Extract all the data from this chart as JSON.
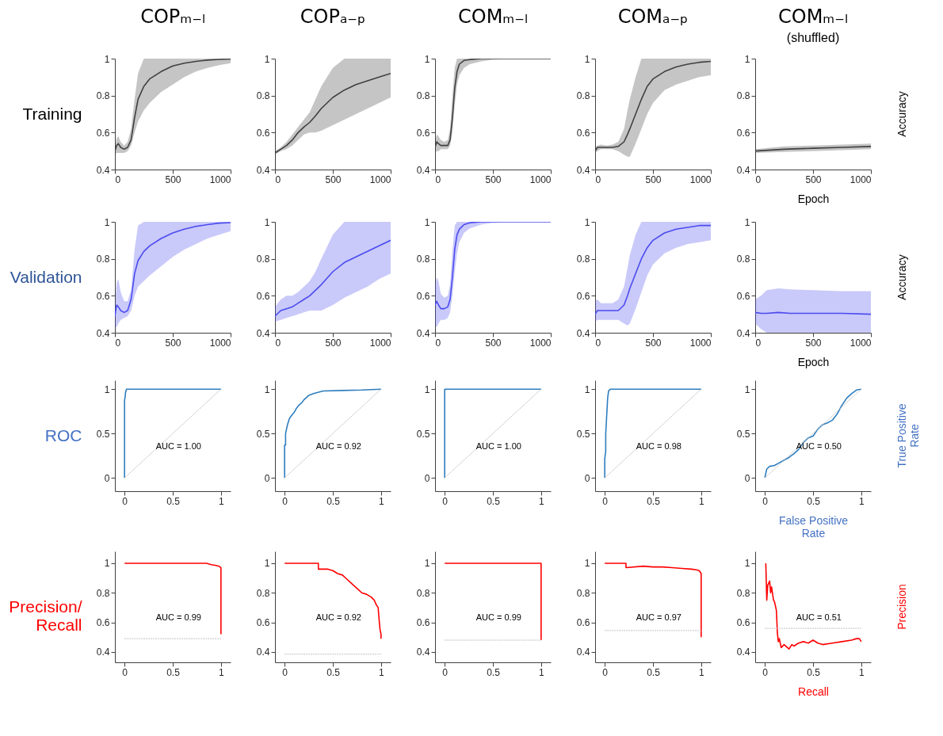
{
  "chart_data": [
    {
      "type": "line",
      "title": "COPₘ₋ₗ",
      "ylabel": "Training",
      "xlim": [
        0,
        1000
      ],
      "xticks": [
        0,
        500,
        1000
      ],
      "ylim": [
        0.4,
        1
      ],
      "yticks": [
        0.4,
        0.6,
        0.8,
        1
      ],
      "x": [
        0,
        15,
        30,
        50,
        80,
        110,
        140,
        170,
        200,
        250,
        300,
        400,
        500,
        600,
        700,
        800,
        900,
        1000
      ],
      "series": [
        {
          "color": "#404040",
          "values": [
            0.5,
            0.53,
            0.54,
            0.52,
            0.51,
            0.52,
            0.56,
            0.68,
            0.78,
            0.85,
            0.89,
            0.93,
            0.96,
            0.975,
            0.985,
            0.992,
            0.996,
            0.998
          ],
          "lower": [
            0.48,
            0.49,
            0.49,
            0.49,
            0.49,
            0.5,
            0.53,
            0.6,
            0.66,
            0.72,
            0.76,
            0.82,
            0.86,
            0.9,
            0.93,
            0.95,
            0.965,
            0.975
          ],
          "upper": [
            0.52,
            0.57,
            0.58,
            0.55,
            0.53,
            0.55,
            0.62,
            0.78,
            0.92,
            1,
            1,
            1,
            1,
            1,
            1,
            1,
            1,
            1
          ]
        }
      ]
    },
    {
      "type": "line",
      "title": "COPₐ₋ₚ",
      "xlim": [
        0,
        1000
      ],
      "xticks": [
        0,
        500,
        1000
      ],
      "ylim": [
        0.4,
        1
      ],
      "yticks": [
        0.4,
        0.6,
        0.8,
        1
      ],
      "x": [
        0,
        50,
        100,
        150,
        200,
        250,
        300,
        350,
        400,
        500,
        600,
        700,
        800,
        900,
        1000
      ],
      "series": [
        {
          "color": "#404040",
          "values": [
            0.49,
            0.51,
            0.53,
            0.56,
            0.6,
            0.63,
            0.655,
            0.69,
            0.73,
            0.79,
            0.83,
            0.86,
            0.88,
            0.9,
            0.92
          ],
          "lower": [
            0.48,
            0.5,
            0.51,
            0.53,
            0.56,
            0.59,
            0.6,
            0.6,
            0.61,
            0.64,
            0.67,
            0.7,
            0.73,
            0.76,
            0.79
          ],
          "upper": [
            0.5,
            0.52,
            0.55,
            0.59,
            0.63,
            0.67,
            0.71,
            0.78,
            0.85,
            0.95,
            1,
            1,
            1,
            1,
            1
          ]
        }
      ]
    },
    {
      "type": "line",
      "title": "COMₘ₋ₗ",
      "xlim": [
        0,
        1000
      ],
      "xticks": [
        0,
        500,
        1000
      ],
      "ylim": [
        0.4,
        1
      ],
      "yticks": [
        0.4,
        0.6,
        0.8,
        1
      ],
      "x": [
        0,
        15,
        30,
        50,
        80,
        110,
        130,
        150,
        170,
        190,
        210,
        250,
        300,
        400,
        500,
        600,
        700,
        1000
      ],
      "series": [
        {
          "color": "#404040",
          "values": [
            0.52,
            0.55,
            0.54,
            0.53,
            0.53,
            0.53,
            0.56,
            0.68,
            0.84,
            0.93,
            0.97,
            0.99,
            0.995,
            1,
            1,
            1,
            1,
            1
          ],
          "lower": [
            0.49,
            0.5,
            0.5,
            0.51,
            0.51,
            0.51,
            0.53,
            0.6,
            0.75,
            0.86,
            0.91,
            0.95,
            0.97,
            0.985,
            0.995,
            1,
            1,
            1
          ],
          "upper": [
            0.55,
            0.59,
            0.58,
            0.56,
            0.55,
            0.56,
            0.62,
            0.8,
            0.95,
            1,
            1,
            1,
            1,
            1,
            1,
            1,
            1,
            1
          ]
        }
      ]
    },
    {
      "type": "line",
      "title": "COMₐ₋ₚ",
      "xlim": [
        0,
        1000
      ],
      "xticks": [
        0,
        500,
        1000
      ],
      "ylim": [
        0.4,
        1
      ],
      "yticks": [
        0.4,
        0.6,
        0.8,
        1
      ],
      "x": [
        0,
        20,
        50,
        100,
        150,
        200,
        250,
        280,
        300,
        350,
        400,
        450,
        500,
        600,
        700,
        800,
        900,
        1000
      ],
      "series": [
        {
          "color": "#404040",
          "values": [
            0.5,
            0.52,
            0.52,
            0.52,
            0.52,
            0.525,
            0.55,
            0.59,
            0.62,
            0.7,
            0.78,
            0.85,
            0.89,
            0.93,
            0.955,
            0.97,
            0.98,
            0.985
          ],
          "lower": [
            0.49,
            0.5,
            0.51,
            0.51,
            0.51,
            0.5,
            0.48,
            0.47,
            0.47,
            0.54,
            0.62,
            0.7,
            0.76,
            0.83,
            0.86,
            0.88,
            0.9,
            0.91
          ],
          "upper": [
            0.52,
            0.53,
            0.535,
            0.53,
            0.535,
            0.55,
            0.62,
            0.72,
            0.78,
            0.9,
            1,
            1,
            1,
            1,
            1,
            1,
            1,
            1
          ]
        }
      ]
    },
    {
      "type": "line",
      "title": "COMₘ₋ₗ",
      "subtitle": "(shuffled)",
      "ylabel": "Accuracy",
      "xlabel": "Epoch",
      "xlim": [
        0,
        1000
      ],
      "xticks": [
        0,
        500,
        1000
      ],
      "ylim": [
        0.4,
        1
      ],
      "yticks": [
        0.4,
        0.6,
        0.8,
        1
      ],
      "x": [
        0,
        250,
        500,
        750,
        1000
      ],
      "series": [
        {
          "color": "#404040",
          "values": [
            0.5,
            0.51,
            0.515,
            0.52,
            0.525
          ],
          "lower": [
            0.49,
            0.495,
            0.5,
            0.505,
            0.51
          ],
          "upper": [
            0.51,
            0.525,
            0.53,
            0.535,
            0.54
          ]
        }
      ]
    },
    {
      "type": "line",
      "ylabel": "Validation",
      "xlim": [
        0,
        1000
      ],
      "xticks": [
        0,
        500,
        1000
      ],
      "ylim": [
        0.4,
        1
      ],
      "yticks": [
        0.4,
        0.6,
        0.8,
        1
      ],
      "x": [
        0,
        15,
        30,
        50,
        80,
        110,
        140,
        170,
        200,
        250,
        300,
        400,
        500,
        600,
        700,
        800,
        900,
        1000
      ],
      "series": [
        {
          "color": "#4b4bf0",
          "values": [
            0.49,
            0.55,
            0.54,
            0.52,
            0.51,
            0.52,
            0.58,
            0.72,
            0.79,
            0.84,
            0.87,
            0.91,
            0.94,
            0.96,
            0.975,
            0.985,
            0.993,
            0.996
          ],
          "lower": [
            0.43,
            0.43,
            0.45,
            0.47,
            0.48,
            0.49,
            0.52,
            0.6,
            0.65,
            0.68,
            0.71,
            0.76,
            0.81,
            0.85,
            0.88,
            0.91,
            0.93,
            0.95
          ],
          "upper": [
            0.55,
            0.67,
            0.69,
            0.62,
            0.57,
            0.57,
            0.63,
            0.85,
            0.98,
            1,
            1,
            1,
            1,
            1,
            1,
            1,
            1,
            1
          ]
        }
      ]
    },
    {
      "type": "line",
      "xlim": [
        0,
        1000
      ],
      "xticks": [
        0,
        500,
        1000
      ],
      "ylim": [
        0.4,
        1
      ],
      "yticks": [
        0.4,
        0.6,
        0.8,
        1
      ],
      "x": [
        0,
        50,
        100,
        150,
        200,
        250,
        300,
        350,
        400,
        500,
        600,
        700,
        800,
        900,
        1000
      ],
      "series": [
        {
          "color": "#4b4bf0",
          "values": [
            0.49,
            0.52,
            0.53,
            0.54,
            0.56,
            0.58,
            0.6,
            0.63,
            0.66,
            0.73,
            0.78,
            0.81,
            0.84,
            0.87,
            0.9
          ],
          "lower": [
            0.46,
            0.47,
            0.48,
            0.49,
            0.5,
            0.51,
            0.52,
            0.52,
            0.52,
            0.55,
            0.59,
            0.62,
            0.65,
            0.69,
            0.72
          ],
          "upper": [
            0.54,
            0.58,
            0.6,
            0.6,
            0.62,
            0.65,
            0.68,
            0.73,
            0.8,
            0.93,
            1,
            1,
            1,
            1,
            1
          ]
        }
      ]
    },
    {
      "type": "line",
      "xlim": [
        0,
        1000
      ],
      "xticks": [
        0,
        500,
        1000
      ],
      "ylim": [
        0.4,
        1
      ],
      "yticks": [
        0.4,
        0.6,
        0.8,
        1
      ],
      "x": [
        0,
        15,
        30,
        50,
        80,
        110,
        130,
        150,
        170,
        190,
        210,
        250,
        300,
        400,
        500,
        600,
        700,
        1000
      ],
      "series": [
        {
          "color": "#4b4bf0",
          "values": [
            0.55,
            0.57,
            0.55,
            0.53,
            0.53,
            0.54,
            0.58,
            0.7,
            0.85,
            0.93,
            0.96,
            0.985,
            0.995,
            1,
            1,
            1,
            1,
            1
          ],
          "lower": [
            0.44,
            0.43,
            0.45,
            0.47,
            0.47,
            0.48,
            0.51,
            0.6,
            0.73,
            0.83,
            0.89,
            0.94,
            0.965,
            0.985,
            0.995,
            1,
            1,
            1
          ],
          "upper": [
            0.66,
            0.7,
            0.68,
            0.61,
            0.59,
            0.6,
            0.66,
            0.84,
            0.98,
            1,
            1,
            1,
            1,
            1,
            1,
            1,
            1,
            1
          ]
        }
      ]
    },
    {
      "type": "line",
      "xlim": [
        0,
        1000
      ],
      "xticks": [
        0,
        500,
        1000
      ],
      "ylim": [
        0.4,
        1
      ],
      "yticks": [
        0.4,
        0.6,
        0.8,
        1
      ],
      "x": [
        0,
        20,
        50,
        100,
        150,
        200,
        250,
        280,
        300,
        350,
        400,
        450,
        500,
        600,
        700,
        800,
        900,
        1000
      ],
      "series": [
        {
          "color": "#4b4bf0",
          "values": [
            0.5,
            0.52,
            0.52,
            0.52,
            0.52,
            0.52,
            0.55,
            0.6,
            0.64,
            0.72,
            0.8,
            0.86,
            0.9,
            0.94,
            0.96,
            0.97,
            0.98,
            0.98
          ],
          "lower": [
            0.46,
            0.47,
            0.47,
            0.47,
            0.47,
            0.47,
            0.45,
            0.44,
            0.45,
            0.53,
            0.62,
            0.71,
            0.77,
            0.83,
            0.86,
            0.88,
            0.89,
            0.9
          ],
          "upper": [
            0.57,
            0.58,
            0.56,
            0.56,
            0.56,
            0.58,
            0.65,
            0.75,
            0.82,
            0.93,
            1,
            1,
            1,
            1,
            1,
            1,
            1,
            1
          ]
        }
      ]
    },
    {
      "type": "line",
      "ylabel": "Accuracy",
      "xlabel": "Epoch",
      "xlim": [
        0,
        1000
      ],
      "xticks": [
        0,
        500,
        1000
      ],
      "ylim": [
        0.4,
        1
      ],
      "yticks": [
        0.4,
        0.6,
        0.8,
        1
      ],
      "x": [
        0,
        50,
        100,
        200,
        300,
        500,
        750,
        1000
      ],
      "series": [
        {
          "color": "#4b4bf0",
          "values": [
            0.51,
            0.505,
            0.505,
            0.51,
            0.505,
            0.505,
            0.505,
            0.5
          ],
          "lower": [
            0.45,
            0.42,
            0.4,
            0.4,
            0.4,
            0.4,
            0.4,
            0.4
          ],
          "upper": [
            0.58,
            0.6,
            0.63,
            0.64,
            0.635,
            0.63,
            0.625,
            0.625
          ]
        }
      ]
    },
    {
      "type": "line",
      "ylabel": "ROC",
      "annotations": [
        "AUC = 1.00"
      ],
      "xlim": [
        -0.1,
        1.1
      ],
      "xticks": [
        0,
        0.5,
        1
      ],
      "ylim": [
        -0.15,
        1.1
      ],
      "yticks": [
        0,
        0.5,
        1
      ],
      "series": [
        {
          "color": "#c0c0c0",
          "line_style": "dotted",
          "x": [
            0,
            1
          ],
          "values": [
            0,
            1
          ]
        },
        {
          "color": "#2e7ebf",
          "x": [
            0,
            0,
            0.005,
            0.01,
            0.02,
            1
          ],
          "values": [
            0,
            0.88,
            0.9,
            0.96,
            1,
            1
          ]
        }
      ]
    },
    {
      "type": "line",
      "annotations": [
        "AUC = 0.92"
      ],
      "xlim": [
        -0.1,
        1.1
      ],
      "xticks": [
        0,
        0.5,
        1
      ],
      "ylim": [
        -0.15,
        1.1
      ],
      "yticks": [
        0,
        0.5,
        1
      ],
      "series": [
        {
          "color": "#c0c0c0",
          "line_style": "dotted",
          "x": [
            0,
            1
          ],
          "values": [
            0,
            1
          ]
        },
        {
          "color": "#2e7ebf",
          "x": [
            0,
            0,
            0.01,
            0.01,
            0.02,
            0.03,
            0.05,
            0.07,
            0.1,
            0.12,
            0.15,
            0.18,
            0.2,
            0.25,
            0.3,
            0.4,
            0.6,
            0.8,
            1
          ],
          "values": [
            0,
            0.37,
            0.37,
            0.5,
            0.55,
            0.6,
            0.67,
            0.7,
            0.74,
            0.78,
            0.82,
            0.85,
            0.88,
            0.93,
            0.95,
            0.98,
            0.985,
            0.99,
            1
          ]
        }
      ]
    },
    {
      "type": "line",
      "annotations": [
        "AUC = 1.00"
      ],
      "xlim": [
        -0.1,
        1.1
      ],
      "xticks": [
        0,
        0.5,
        1
      ],
      "ylim": [
        -0.15,
        1.1
      ],
      "yticks": [
        0,
        0.5,
        1
      ],
      "series": [
        {
          "color": "#c0c0c0",
          "line_style": "dotted",
          "x": [
            0,
            1
          ],
          "values": [
            0,
            1
          ]
        },
        {
          "color": "#2e7ebf",
          "x": [
            0,
            0,
            1
          ],
          "values": [
            0,
            1,
            1
          ]
        }
      ]
    },
    {
      "type": "line",
      "annotations": [
        "AUC = 0.98"
      ],
      "xlim": [
        -0.1,
        1.1
      ],
      "xticks": [
        0,
        0.5,
        1
      ],
      "ylim": [
        -0.15,
        1.1
      ],
      "yticks": [
        0,
        0.5,
        1
      ],
      "series": [
        {
          "color": "#c0c0c0",
          "line_style": "dotted",
          "x": [
            0,
            1
          ],
          "values": [
            0,
            1
          ]
        },
        {
          "color": "#2e7ebf",
          "x": [
            0,
            0,
            0.01,
            0.01,
            0.02,
            0.03,
            0.04,
            0.06,
            1
          ],
          "values": [
            0,
            0.22,
            0.3,
            0.5,
            0.7,
            0.9,
            0.98,
            1,
            1
          ]
        }
      ]
    },
    {
      "type": "line",
      "ylabel": "True Positive\nRate",
      "xlabel": "False Positive\nRate",
      "annotations": [
        "AUC = 0.50"
      ],
      "xlim": [
        -0.1,
        1.1
      ],
      "xticks": [
        0,
        0.5,
        1
      ],
      "ylim": [
        -0.15,
        1.1
      ],
      "yticks": [
        0,
        0.5,
        1
      ],
      "series": [
        {
          "color": "#c0c0c0",
          "line_style": "dotted",
          "x": [
            0,
            1
          ],
          "values": [
            0,
            1
          ]
        },
        {
          "color": "#2e7ebf",
          "x": [
            0,
            0.02,
            0.05,
            0.1,
            0.15,
            0.2,
            0.25,
            0.3,
            0.35,
            0.4,
            0.45,
            0.5,
            0.55,
            0.6,
            0.65,
            0.7,
            0.75,
            0.8,
            0.85,
            0.9,
            0.95,
            1
          ],
          "values": [
            0,
            0.1,
            0.13,
            0.14,
            0.17,
            0.2,
            0.23,
            0.27,
            0.32,
            0.4,
            0.45,
            0.47,
            0.55,
            0.6,
            0.62,
            0.65,
            0.72,
            0.82,
            0.9,
            0.95,
            0.99,
            1
          ]
        }
      ]
    },
    {
      "type": "line",
      "ylabel": "Precision/\nRecall",
      "annotations": [
        "AUC = 0.99"
      ],
      "xlim": [
        -0.1,
        1.1
      ],
      "xticks": [
        0,
        0.5,
        1
      ],
      "ylim": [
        0.33,
        1.08
      ],
      "yticks": [
        0.4,
        0.6,
        0.8,
        1
      ],
      "series": [
        {
          "color": "#c0c0c0",
          "line_style": "dotted",
          "x": [
            0,
            1
          ],
          "values": [
            0.49,
            0.49
          ]
        },
        {
          "color": "#ff0000",
          "x": [
            0,
            0.85,
            0.9,
            0.95,
            0.98,
            0.99,
            1,
            1
          ],
          "values": [
            1,
            1,
            0.99,
            0.985,
            0.98,
            0.975,
            0.97,
            0.52
          ]
        }
      ]
    },
    {
      "type": "line",
      "annotations": [
        "AUC = 0.92"
      ],
      "xlim": [
        -0.1,
        1.1
      ],
      "xticks": [
        0,
        0.5,
        1
      ],
      "ylim": [
        0.33,
        1.08
      ],
      "yticks": [
        0.4,
        0.6,
        0.8,
        1
      ],
      "series": [
        {
          "color": "#c0c0c0",
          "line_style": "dotted",
          "x": [
            0,
            1
          ],
          "values": [
            0.385,
            0.385
          ]
        },
        {
          "color": "#ff0000",
          "x": [
            0,
            0.35,
            0.35,
            0.45,
            0.5,
            0.55,
            0.6,
            0.65,
            0.7,
            0.75,
            0.8,
            0.85,
            0.9,
            0.93,
            0.95,
            0.97,
            0.98,
            0.99,
            1,
            1
          ],
          "values": [
            1,
            1,
            0.96,
            0.96,
            0.95,
            0.93,
            0.92,
            0.89,
            0.86,
            0.83,
            0.8,
            0.79,
            0.77,
            0.75,
            0.72,
            0.7,
            0.62,
            0.55,
            0.52,
            0.49
          ]
        }
      ]
    },
    {
      "type": "line",
      "annotations": [
        "AUC = 0.99"
      ],
      "xlim": [
        -0.1,
        1.1
      ],
      "xticks": [
        0,
        0.5,
        1
      ],
      "ylim": [
        0.33,
        1.08
      ],
      "yticks": [
        0.4,
        0.6,
        0.8,
        1
      ],
      "series": [
        {
          "color": "#c0c0c0",
          "line_style": "dotted",
          "x": [
            0,
            1
          ],
          "values": [
            0.48,
            0.48
          ]
        },
        {
          "color": "#ff0000",
          "x": [
            0,
            1,
            1
          ],
          "values": [
            1,
            1,
            0.48
          ]
        }
      ]
    },
    {
      "type": "line",
      "annotations": [
        "AUC = 0.97"
      ],
      "xlim": [
        -0.1,
        1.1
      ],
      "xticks": [
        0,
        0.5,
        1
      ],
      "ylim": [
        0.33,
        1.08
      ],
      "yticks": [
        0.4,
        0.6,
        0.8,
        1
      ],
      "series": [
        {
          "color": "#c0c0c0",
          "line_style": "dotted",
          "x": [
            0,
            1
          ],
          "values": [
            0.545,
            0.545
          ]
        },
        {
          "color": "#ff0000",
          "x": [
            0,
            0.22,
            0.22,
            0.4,
            0.5,
            0.6,
            0.7,
            0.8,
            0.9,
            0.95,
            0.98,
            1,
            1
          ],
          "values": [
            1,
            1,
            0.97,
            0.98,
            0.975,
            0.975,
            0.97,
            0.965,
            0.96,
            0.955,
            0.95,
            0.93,
            0.5
          ]
        }
      ]
    },
    {
      "type": "line",
      "ylabel": "Precision",
      "xlabel": "Recall",
      "annotations": [
        "AUC = 0.51"
      ],
      "xlim": [
        -0.1,
        1.1
      ],
      "xticks": [
        0,
        0.5,
        1
      ],
      "ylim": [
        0.33,
        1.08
      ],
      "yticks": [
        0.4,
        0.6,
        0.8,
        1
      ],
      "series": [
        {
          "color": "#c0c0c0",
          "line_style": "dotted",
          "x": [
            0,
            1
          ],
          "values": [
            0.56,
            0.56
          ]
        },
        {
          "color": "#ff0000",
          "x": [
            0.01,
            0.02,
            0.03,
            0.05,
            0.06,
            0.07,
            0.09,
            0.1,
            0.12,
            0.13,
            0.14,
            0.15,
            0.17,
            0.2,
            0.25,
            0.28,
            0.3,
            0.35,
            0.4,
            0.45,
            0.5,
            0.55,
            0.6,
            0.7,
            0.8,
            0.9,
            0.95,
            0.98,
            1
          ],
          "values": [
            1,
            0.75,
            0.85,
            0.88,
            0.8,
            0.84,
            0.75,
            0.74,
            0.68,
            0.53,
            0.47,
            0.49,
            0.43,
            0.45,
            0.42,
            0.45,
            0.44,
            0.46,
            0.47,
            0.46,
            0.48,
            0.46,
            0.45,
            0.46,
            0.47,
            0.48,
            0.49,
            0.49,
            0.47
          ]
        }
      ]
    }
  ]
}
